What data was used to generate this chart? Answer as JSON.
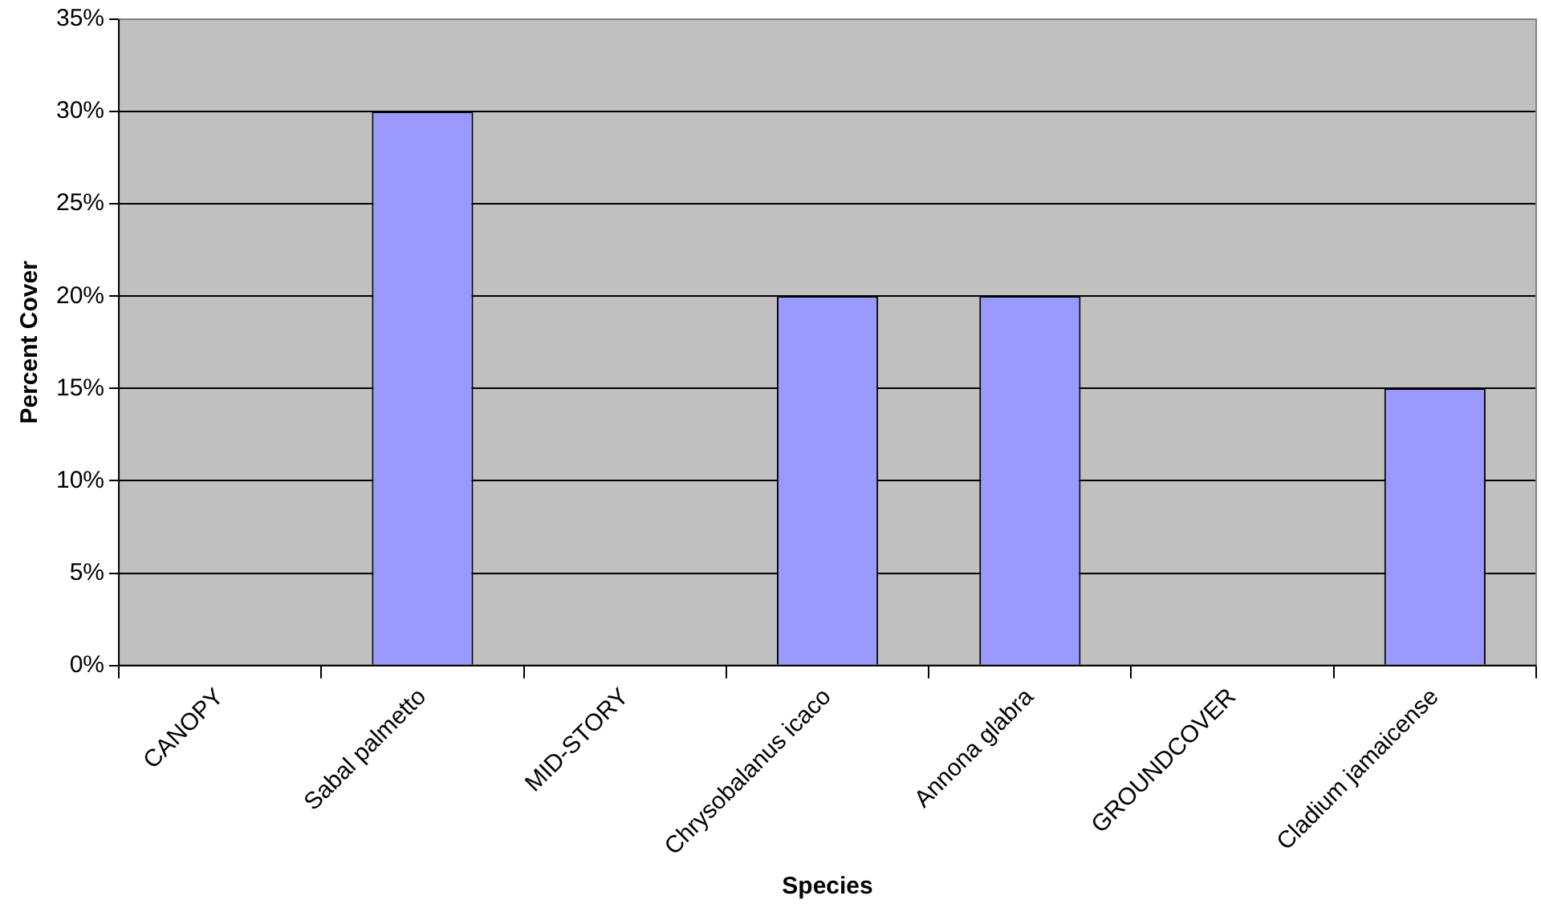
{
  "chart_data": {
    "type": "bar",
    "xlabel": "Species",
    "ylabel": "Percent Cover",
    "categories": [
      "CANOPY",
      "Sabal palmetto",
      "MID-STORY",
      "Chrysobalanus icaco",
      "Annona glabra",
      "GROUNDCOVER",
      "Cladium jamaicense"
    ],
    "values": [
      null,
      30,
      null,
      20,
      20,
      null,
      15
    ],
    "color": "#9999ff",
    "ylim": [
      0,
      35
    ],
    "yticks": [
      {
        "value": 0,
        "label": "0%"
      },
      {
        "value": 5,
        "label": "5%"
      },
      {
        "value": 10,
        "label": "10%"
      },
      {
        "value": 15,
        "label": "15%"
      },
      {
        "value": 20,
        "label": "20%"
      },
      {
        "value": 25,
        "label": "25%"
      },
      {
        "value": 30,
        "label": "30%"
      },
      {
        "value": 35,
        "label": "35%"
      }
    ],
    "grid": "y",
    "legend": false
  }
}
